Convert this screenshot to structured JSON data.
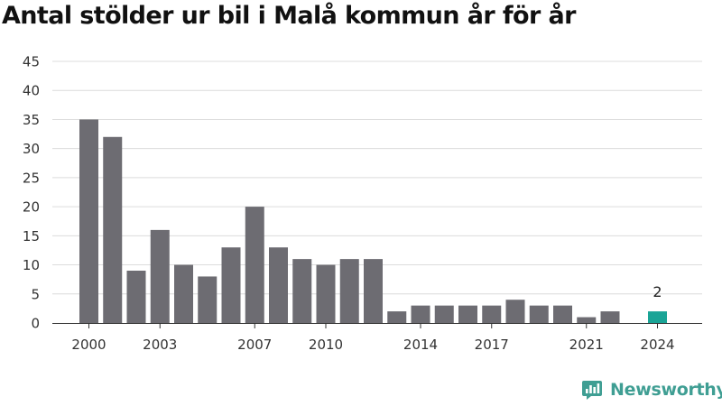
{
  "chart_data": {
    "type": "bar",
    "title": "Antal stölder ur bil i Malå kommun år för år",
    "xlabel": "",
    "ylabel": "",
    "categories": [
      2000,
      2001,
      2002,
      2003,
      2004,
      2005,
      2006,
      2007,
      2008,
      2009,
      2010,
      2011,
      2012,
      2013,
      2014,
      2015,
      2016,
      2017,
      2018,
      2019,
      2020,
      2021,
      2022,
      2023,
      2024
    ],
    "values": [
      35,
      32,
      9,
      16,
      10,
      8,
      13,
      20,
      13,
      11,
      10,
      11,
      11,
      2,
      3,
      3,
      3,
      3,
      4,
      3,
      3,
      1,
      2,
      null,
      2
    ],
    "ylim": [
      0,
      45
    ],
    "yticks": [
      0,
      5,
      10,
      15,
      20,
      25,
      30,
      35,
      40,
      45
    ],
    "xticks": [
      2000,
      2003,
      2007,
      2010,
      2014,
      2017,
      2021,
      2024
    ],
    "bar_color": "#6d6c72",
    "highlight": {
      "category": 2024,
      "color": "#1aa496",
      "label": "2"
    },
    "grid": true,
    "legend": "none"
  },
  "brand": {
    "name": "Newsworthy",
    "logo_icon": "newsworthy-chart-logo-icon",
    "color": "#3f9e93"
  }
}
